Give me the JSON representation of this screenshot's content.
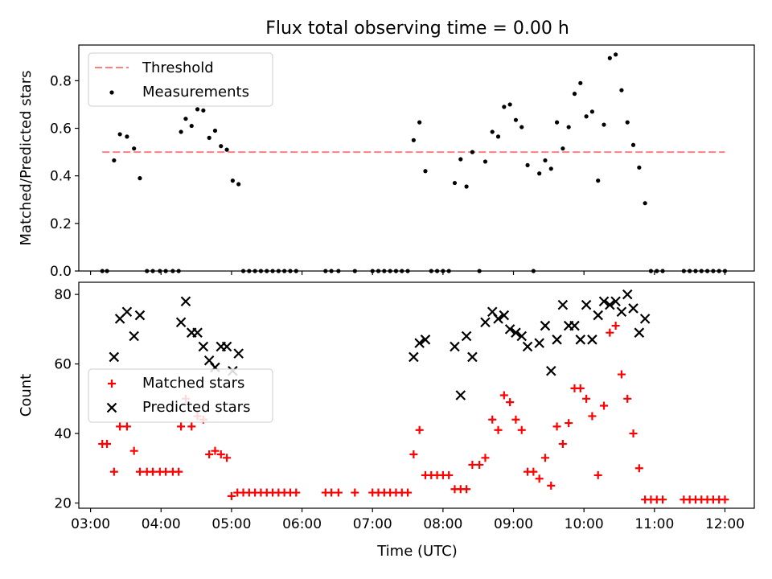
{
  "title": "Flux total observing time = 0.00 h",
  "x_ticks": [
    "03:00",
    "04:00",
    "05:00",
    "06:00",
    "07:00",
    "08:00",
    "09:00",
    "10:00",
    "11:00",
    "12:00"
  ],
  "xlabel": "Time (UTC)",
  "colors": {
    "threshold": "#ff7f7f",
    "measurement": "#000000",
    "matched": "#ff0000",
    "predicted": "#000000"
  },
  "chart_data": [
    {
      "type": "scatter",
      "ylabel": "Matched/Predicted stars",
      "xlim": [
        "02:50",
        "12:25"
      ],
      "ylim": [
        0,
        0.95
      ],
      "y_ticks": [
        "0.0",
        "0.2",
        "0.4",
        "0.6",
        "0.8"
      ],
      "legend_position": "upper left",
      "threshold": {
        "name": "Threshold",
        "value": 0.5,
        "x_range": [
          "03:10",
          "12:00"
        ]
      },
      "measurements": {
        "name": "Measurements",
        "points": [
          [
            "03:10",
            0
          ],
          [
            "03:14",
            0
          ],
          [
            "03:20",
            0.465
          ],
          [
            "03:25",
            0.575
          ],
          [
            "03:31",
            0.565
          ],
          [
            "03:37",
            0.515
          ],
          [
            "03:42",
            0.39
          ],
          [
            "03:48",
            0
          ],
          [
            "03:53",
            0
          ],
          [
            "03:59",
            0
          ],
          [
            "04:04",
            0
          ],
          [
            "04:10",
            0
          ],
          [
            "04:15",
            0
          ],
          [
            "04:17",
            0.585
          ],
          [
            "04:21",
            0.64
          ],
          [
            "04:26",
            0.61
          ],
          [
            "04:31",
            0.68
          ],
          [
            "04:36",
            0.675
          ],
          [
            "04:41",
            0.56
          ],
          [
            "04:46",
            0.59
          ],
          [
            "04:51",
            0.525
          ],
          [
            "04:56",
            0.51
          ],
          [
            "05:01",
            0.38
          ],
          [
            "05:06",
            0.365
          ],
          [
            "05:10",
            0
          ],
          [
            "05:15",
            0
          ],
          [
            "05:20",
            0
          ],
          [
            "05:25",
            0
          ],
          [
            "05:30",
            0
          ],
          [
            "05:35",
            0
          ],
          [
            "05:40",
            0
          ],
          [
            "05:45",
            0
          ],
          [
            "05:50",
            0
          ],
          [
            "05:55",
            0
          ],
          [
            "06:20",
            0
          ],
          [
            "06:25",
            0
          ],
          [
            "06:31",
            0
          ],
          [
            "06:45",
            0
          ],
          [
            "07:00",
            0
          ],
          [
            "07:05",
            0
          ],
          [
            "07:10",
            0
          ],
          [
            "07:15",
            0
          ],
          [
            "07:20",
            0
          ],
          [
            "07:25",
            0
          ],
          [
            "07:30",
            0
          ],
          [
            "07:35",
            0.55
          ],
          [
            "07:40",
            0.625
          ],
          [
            "07:45",
            0.42
          ],
          [
            "07:50",
            0
          ],
          [
            "07:55",
            0
          ],
          [
            "08:00",
            0
          ],
          [
            "08:05",
            0
          ],
          [
            "08:10",
            0.37
          ],
          [
            "08:15",
            0.47
          ],
          [
            "08:20",
            0.355
          ],
          [
            "08:25",
            0.5
          ],
          [
            "08:31",
            0
          ],
          [
            "08:36",
            0.46
          ],
          [
            "08:42",
            0.585
          ],
          [
            "08:47",
            0.565
          ],
          [
            "08:52",
            0.69
          ],
          [
            "08:57",
            0.7
          ],
          [
            "09:02",
            0.635
          ],
          [
            "09:07",
            0.605
          ],
          [
            "09:12",
            0.445
          ],
          [
            "09:17",
            0
          ],
          [
            "09:22",
            0.41
          ],
          [
            "09:27",
            0.465
          ],
          [
            "09:32",
            0.43
          ],
          [
            "09:37",
            0.625
          ],
          [
            "09:42",
            0.515
          ],
          [
            "09:47",
            0.605
          ],
          [
            "09:52",
            0.745
          ],
          [
            "09:57",
            0.79
          ],
          [
            "10:02",
            0.65
          ],
          [
            "10:07",
            0.67
          ],
          [
            "10:12",
            0.38
          ],
          [
            "10:17",
            0.615
          ],
          [
            "10:22",
            0.895
          ],
          [
            "10:27",
            0.91
          ],
          [
            "10:32",
            0.76
          ],
          [
            "10:37",
            0.625
          ],
          [
            "10:42",
            0.53
          ],
          [
            "10:47",
            0.435
          ],
          [
            "10:52",
            0.285
          ],
          [
            "10:57",
            0
          ],
          [
            "11:02",
            0
          ],
          [
            "11:07",
            0
          ],
          [
            "11:25",
            0
          ],
          [
            "11:30",
            0
          ],
          [
            "11:35",
            0
          ],
          [
            "11:40",
            0
          ],
          [
            "11:45",
            0
          ],
          [
            "11:50",
            0
          ],
          [
            "11:55",
            0
          ],
          [
            "12:00",
            0
          ]
        ]
      }
    },
    {
      "type": "scatter",
      "ylabel": "Count",
      "xlim": [
        "02:50",
        "12:25"
      ],
      "ylim": [
        18.5,
        83.5
      ],
      "y_ticks": [
        "20",
        "40",
        "60",
        "80"
      ],
      "legend_position": "center left",
      "series": [
        {
          "name": "Matched stars",
          "marker": "+",
          "points": [
            [
              "03:10",
              37
            ],
            [
              "03:14",
              37
            ],
            [
              "03:20",
              29
            ],
            [
              "03:25",
              42
            ],
            [
              "03:31",
              42
            ],
            [
              "03:37",
              35
            ],
            [
              "03:42",
              29
            ],
            [
              "03:48",
              29
            ],
            [
              "03:53",
              29
            ],
            [
              "03:59",
              29
            ],
            [
              "04:04",
              29
            ],
            [
              "04:10",
              29
            ],
            [
              "04:15",
              29
            ],
            [
              "04:17",
              42
            ],
            [
              "04:21",
              50
            ],
            [
              "04:26",
              42
            ],
            [
              "04:31",
              45
            ],
            [
              "04:36",
              44
            ],
            [
              "04:41",
              34
            ],
            [
              "04:46",
              35
            ],
            [
              "04:51",
              34
            ],
            [
              "04:56",
              33
            ],
            [
              "05:00",
              22
            ],
            [
              "05:05",
              23
            ],
            [
              "05:10",
              23
            ],
            [
              "05:15",
              23
            ],
            [
              "05:20",
              23
            ],
            [
              "05:25",
              23
            ],
            [
              "05:30",
              23
            ],
            [
              "05:35",
              23
            ],
            [
              "05:40",
              23
            ],
            [
              "05:45",
              23
            ],
            [
              "05:50",
              23
            ],
            [
              "05:55",
              23
            ],
            [
              "06:20",
              23
            ],
            [
              "06:25",
              23
            ],
            [
              "06:31",
              23
            ],
            [
              "06:45",
              23
            ],
            [
              "07:00",
              23
            ],
            [
              "07:05",
              23
            ],
            [
              "07:10",
              23
            ],
            [
              "07:15",
              23
            ],
            [
              "07:20",
              23
            ],
            [
              "07:25",
              23
            ],
            [
              "07:30",
              23
            ],
            [
              "07:35",
              34
            ],
            [
              "07:40",
              41
            ],
            [
              "07:45",
              28
            ],
            [
              "07:50",
              28
            ],
            [
              "07:55",
              28
            ],
            [
              "08:00",
              28
            ],
            [
              "08:05",
              28
            ],
            [
              "08:10",
              24
            ],
            [
              "08:15",
              24
            ],
            [
              "08:20",
              24
            ],
            [
              "08:25",
              31
            ],
            [
              "08:31",
              31
            ],
            [
              "08:36",
              33
            ],
            [
              "08:42",
              44
            ],
            [
              "08:47",
              41
            ],
            [
              "08:52",
              51
            ],
            [
              "08:57",
              49
            ],
            [
              "09:02",
              44
            ],
            [
              "09:07",
              41
            ],
            [
              "09:12",
              29
            ],
            [
              "09:17",
              29
            ],
            [
              "09:22",
              27
            ],
            [
              "09:27",
              33
            ],
            [
              "09:32",
              25
            ],
            [
              "09:37",
              42
            ],
            [
              "09:42",
              37
            ],
            [
              "09:47",
              43
            ],
            [
              "09:52",
              53
            ],
            [
              "09:57",
              53
            ],
            [
              "10:02",
              50
            ],
            [
              "10:07",
              45
            ],
            [
              "10:12",
              28
            ],
            [
              "10:17",
              48
            ],
            [
              "10:22",
              69
            ],
            [
              "10:27",
              71
            ],
            [
              "10:32",
              57
            ],
            [
              "10:37",
              50
            ],
            [
              "10:42",
              40
            ],
            [
              "10:47",
              30
            ],
            [
              "10:52",
              21
            ],
            [
              "10:57",
              21
            ],
            [
              "11:02",
              21
            ],
            [
              "11:07",
              21
            ],
            [
              "11:25",
              21
            ],
            [
              "11:30",
              21
            ],
            [
              "11:35",
              21
            ],
            [
              "11:40",
              21
            ],
            [
              "11:45",
              21
            ],
            [
              "11:50",
              21
            ],
            [
              "11:55",
              21
            ],
            [
              "12:00",
              21
            ]
          ]
        },
        {
          "name": "Predicted stars",
          "marker": "x",
          "points": [
            [
              "03:20",
              62
            ],
            [
              "03:25",
              73
            ],
            [
              "03:31",
              75
            ],
            [
              "03:37",
              68
            ],
            [
              "03:42",
              74
            ],
            [
              "04:17",
              72
            ],
            [
              "04:21",
              78
            ],
            [
              "04:26",
              69
            ],
            [
              "04:31",
              69
            ],
            [
              "04:36",
              65
            ],
            [
              "04:41",
              61
            ],
            [
              "04:46",
              59
            ],
            [
              "04:51",
              65
            ],
            [
              "04:56",
              65
            ],
            [
              "05:01",
              58
            ],
            [
              "05:06",
              63
            ],
            [
              "07:35",
              62
            ],
            [
              "07:40",
              66
            ],
            [
              "07:45",
              67
            ],
            [
              "08:10",
              65
            ],
            [
              "08:15",
              51
            ],
            [
              "08:20",
              68
            ],
            [
              "08:25",
              62
            ],
            [
              "08:36",
              72
            ],
            [
              "08:42",
              75
            ],
            [
              "08:47",
              73
            ],
            [
              "08:52",
              74
            ],
            [
              "08:57",
              70
            ],
            [
              "09:02",
              69
            ],
            [
              "09:07",
              68
            ],
            [
              "09:12",
              65
            ],
            [
              "09:22",
              66
            ],
            [
              "09:27",
              71
            ],
            [
              "09:32",
              58
            ],
            [
              "09:37",
              67
            ],
            [
              "09:42",
              77
            ],
            [
              "09:47",
              71
            ],
            [
              "09:52",
              71
            ],
            [
              "09:57",
              67
            ],
            [
              "10:02",
              77
            ],
            [
              "10:07",
              67
            ],
            [
              "10:12",
              74
            ],
            [
              "10:17",
              78
            ],
            [
              "10:22",
              77
            ],
            [
              "10:27",
              78
            ],
            [
              "10:32",
              75
            ],
            [
              "10:37",
              80
            ],
            [
              "10:42",
              76
            ],
            [
              "10:47",
              69
            ],
            [
              "10:52",
              73
            ]
          ]
        }
      ]
    }
  ]
}
